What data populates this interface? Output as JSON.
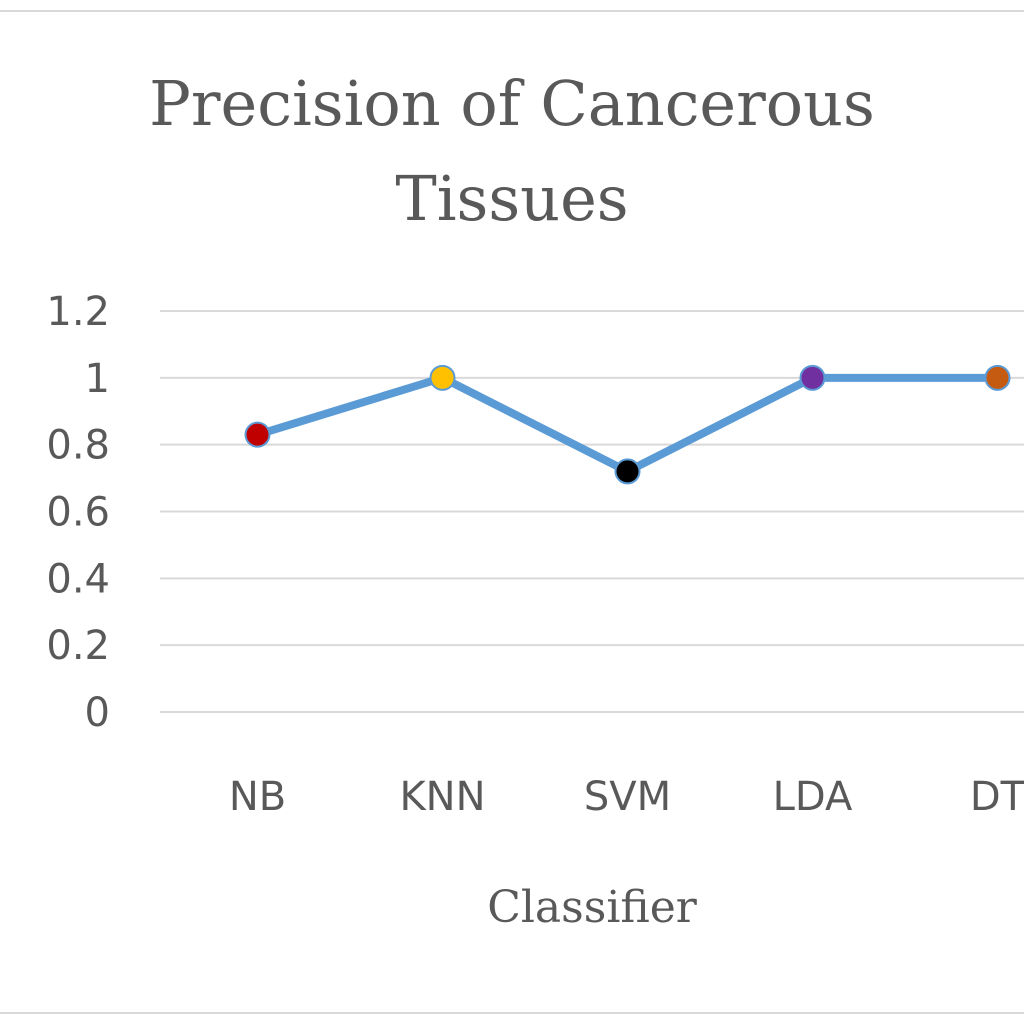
{
  "chart_data": {
    "type": "line",
    "title_lines": [
      "Precision of Cancerous",
      "Tissues"
    ],
    "xlabel": "Classifier",
    "ylabel": "",
    "categories": [
      "NB",
      "KNN",
      "SVM",
      "LDA",
      "DT"
    ],
    "series": [
      {
        "values": [
          0.83,
          1.0,
          0.72,
          1.0,
          1.0
        ],
        "line_color": "#5b9bd5",
        "marker_colors": [
          "#c00000",
          "#ffc000",
          "#000000",
          "#7030a0",
          "#c55a11"
        ]
      }
    ],
    "ylim": [
      0,
      1.2
    ],
    "yticks": [
      "0",
      "0.2",
      "0.4",
      "0.6",
      "0.8",
      "1",
      "1.2"
    ],
    "grid": true,
    "legend": "none"
  }
}
